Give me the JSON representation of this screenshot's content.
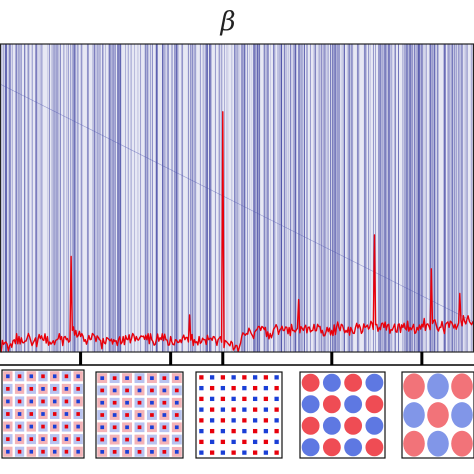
{
  "chart_data": {
    "type": "line",
    "title": "β",
    "xlabel": "",
    "ylabel": "",
    "xlim": [
      0,
      1
    ],
    "ylim": [
      0,
      1
    ],
    "grid": false,
    "series": [
      {
        "color": "#e8000b",
        "x": [
          0.0,
          0.01,
          0.02,
          0.03,
          0.04,
          0.05,
          0.06,
          0.07,
          0.08,
          0.09,
          0.1,
          0.11,
          0.12,
          0.13,
          0.14,
          0.15,
          0.16,
          0.17,
          0.18,
          0.19,
          0.2,
          0.21,
          0.22,
          0.23,
          0.24,
          0.25,
          0.26,
          0.27,
          0.28,
          0.29,
          0.3,
          0.31,
          0.32,
          0.33,
          0.34,
          0.35,
          0.36,
          0.37,
          0.38,
          0.39,
          0.4,
          0.41,
          0.42,
          0.43,
          0.44,
          0.45,
          0.46,
          0.47,
          0.48,
          0.49,
          0.5,
          0.51,
          0.52,
          0.53,
          0.54,
          0.55,
          0.56,
          0.57,
          0.58,
          0.59,
          0.6,
          0.61,
          0.62,
          0.63,
          0.64,
          0.65,
          0.66,
          0.67,
          0.68,
          0.69,
          0.7,
          0.71,
          0.72,
          0.73,
          0.74,
          0.75,
          0.76,
          0.77,
          0.78,
          0.79,
          0.8,
          0.81,
          0.82,
          0.83,
          0.84,
          0.85,
          0.86,
          0.87,
          0.88,
          0.89,
          0.9,
          0.91,
          0.92,
          0.93,
          0.94,
          0.95,
          0.96,
          0.97,
          0.98,
          0.99,
          1.0
        ],
        "values": [
          0.02,
          0.03,
          0.02,
          0.04,
          0.05,
          0.03,
          0.06,
          0.03,
          0.04,
          0.04,
          0.05,
          0.03,
          0.04,
          0.05,
          0.04,
          0.31,
          0.07,
          0.05,
          0.04,
          0.04,
          0.05,
          0.04,
          0.03,
          0.04,
          0.04,
          0.04,
          0.05,
          0.04,
          0.06,
          0.04,
          0.05,
          0.04,
          0.04,
          0.04,
          0.04,
          0.04,
          0.05,
          0.04,
          0.04,
          0.04,
          0.12,
          0.04,
          0.05,
          0.04,
          0.04,
          0.05,
          0.04,
          0.78,
          0.03,
          0.03,
          0.02,
          0.05,
          0.06,
          0.06,
          0.07,
          0.07,
          0.08,
          0.06,
          0.08,
          0.07,
          0.07,
          0.08,
          0.07,
          0.17,
          0.07,
          0.08,
          0.07,
          0.09,
          0.07,
          0.08,
          0.07,
          0.08,
          0.09,
          0.07,
          0.08,
          0.08,
          0.08,
          0.08,
          0.08,
          0.38,
          0.08,
          0.08,
          0.09,
          0.08,
          0.09,
          0.08,
          0.1,
          0.08,
          0.08,
          0.09,
          0.09,
          0.27,
          0.09,
          0.08,
          0.09,
          0.1,
          0.09,
          0.19,
          0.1,
          0.1,
          0.1
        ]
      }
    ],
    "tick_marks_bottom": [
      0.17,
      0.36,
      0.47,
      0.7,
      0.89
    ],
    "vertical_line_color": "#3b3f9e",
    "panel_background": "#e7e8f4",
    "insets": [
      {
        "pattern": "grid-fine"
      },
      {
        "pattern": "grid-medium"
      },
      {
        "pattern": "dots"
      },
      {
        "pattern": "blobs-medium"
      },
      {
        "pattern": "blobs-large"
      }
    ],
    "colors": {
      "positive": "#e8000b",
      "negative": "#1a3fd6",
      "pale_positive": "#f4b3b8",
      "pale_negative": "#b9c3f0"
    }
  }
}
